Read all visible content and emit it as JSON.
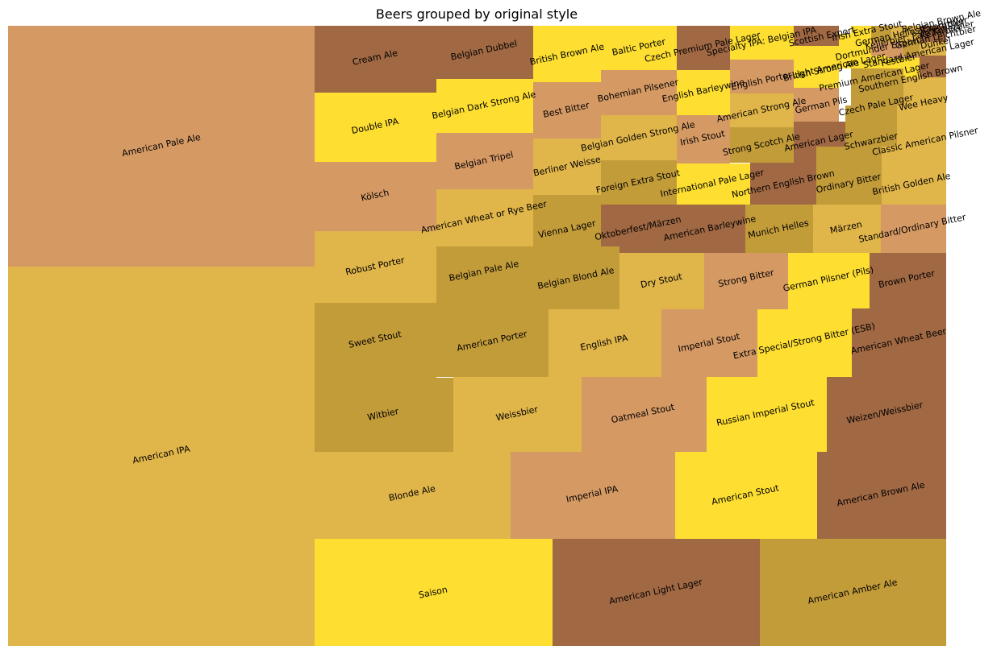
{
  "chart_data": {
    "type": "treemap",
    "title": "Beers grouped by original style",
    "colors": [
      "#d59964",
      "#e0b54a",
      "#a06843",
      "#fdde31",
      "#c39c3a"
    ],
    "tiles": [
      {
        "label": "American Pale Ale",
        "color": "#d59964"
      },
      {
        "label": "American IPA",
        "color": "#e0b54a"
      },
      {
        "label": "Cream Ale",
        "color": "#a06843"
      },
      {
        "label": "Belgian Dubbel",
        "color": "#a06843"
      },
      {
        "label": "Double IPA",
        "color": "#fdde31"
      },
      {
        "label": "Belgian Dark Strong Ale",
        "color": "#fdde31"
      },
      {
        "label": "Belgian Tripel",
        "color": "#d59964"
      },
      {
        "label": "Kölsch",
        "color": "#d59964"
      },
      {
        "label": "American Wheat or Rye Beer",
        "color": "#e0b54a"
      },
      {
        "label": "Robust Porter",
        "color": "#e0b54a"
      },
      {
        "label": "Belgian Pale Ale",
        "color": "#c39c3a"
      },
      {
        "label": "Sweet Stout",
        "color": "#c39c3a"
      },
      {
        "label": "American Porter",
        "color": "#c39c3a"
      },
      {
        "label": "Witbier",
        "color": "#c39c3a"
      },
      {
        "label": "Weissbier",
        "color": "#e0b54a"
      },
      {
        "label": "Blonde Ale",
        "color": "#e0b54a"
      },
      {
        "label": "Saison",
        "color": "#fdde31"
      },
      {
        "label": "American Light Lager",
        "color": "#a06843"
      },
      {
        "label": "American Amber Ale",
        "color": "#c39c3a"
      },
      {
        "label": "British Brown Ale",
        "color": "#fdde31"
      },
      {
        "label": "Baltic Porter",
        "color": "#fdde31"
      },
      {
        "label": "Czech Premium Pale Lager",
        "color": "#a06843"
      },
      {
        "label": "Specialty IPA: Belgian IPA",
        "color": "#fdde31"
      },
      {
        "label": "Scottish Export",
        "color": "#a06843"
      },
      {
        "label": "Irish Extra Stout",
        "color": "#fdde31"
      },
      {
        "label": "German Helles Exportbier",
        "color": "#c39c3a"
      },
      {
        "label": "Kellerbier: Pale Kellerbier",
        "color": "#e0b54a"
      },
      {
        "label": "Dortmunder Export",
        "color": "#fdde31"
      },
      {
        "label": "Light American Lager",
        "color": "#fdde31"
      },
      {
        "label": "Bohemian Pilsener",
        "color": "#d59964"
      },
      {
        "label": "Best Bitter",
        "color": "#d59964"
      },
      {
        "label": "English Barleywine",
        "color": "#fdde31"
      },
      {
        "label": "English Porter",
        "color": "#d59964"
      },
      {
        "label": "British Strong Ale",
        "color": "#fdde31"
      },
      {
        "label": "Festbier",
        "color": "#fdde31"
      },
      {
        "label": "Standard American Lager",
        "color": "#d59964"
      },
      {
        "label": "Belgian Golden Strong Ale",
        "color": "#e0b54a"
      },
      {
        "label": "Berliner Weisse",
        "color": "#e0b54a"
      },
      {
        "label": "Premium American Lager",
        "color": "#fdde31"
      },
      {
        "label": "Southern English Brown",
        "color": "#fdde31"
      },
      {
        "label": "American Strong Ale",
        "color": "#e0b54a"
      },
      {
        "label": "German Pils",
        "color": "#d59964"
      },
      {
        "label": "Czech Pale Lager",
        "color": "#c39c3a"
      },
      {
        "label": "Wee Heavy",
        "color": "#e0b54a"
      },
      {
        "label": "Irish Stout",
        "color": "#d59964"
      },
      {
        "label": "Strong Scotch Ale",
        "color": "#c39c3a"
      },
      {
        "label": "American Lager",
        "color": "#a06843"
      },
      {
        "label": "Schwarzbier",
        "color": "#c39c3a"
      },
      {
        "label": "Classic American Pilsner",
        "color": "#e0b54a"
      },
      {
        "label": "Foreign Extra Stout",
        "color": "#c39c3a"
      },
      {
        "label": "International Pale Lager",
        "color": "#fdde31"
      },
      {
        "label": "Northern English Brown",
        "color": "#a06843"
      },
      {
        "label": "Ordinary Bitter",
        "color": "#c39c3a"
      },
      {
        "label": "British Golden Ale",
        "color": "#e0b54a"
      },
      {
        "label": "Vienna Lager",
        "color": "#c39c3a"
      },
      {
        "label": "Oktoberfest/Märzen",
        "color": "#a06843"
      },
      {
        "label": "American Barleywine",
        "color": "#a06843"
      },
      {
        "label": "Munich Helles",
        "color": "#c39c3a"
      },
      {
        "label": "Märzen",
        "color": "#e0b54a"
      },
      {
        "label": "Standard/Ordinary Bitter",
        "color": "#d59964"
      },
      {
        "label": "Belgian Blond Ale",
        "color": "#c39c3a"
      },
      {
        "label": "Dry Stout",
        "color": "#e0b54a"
      },
      {
        "label": "Strong Bitter",
        "color": "#d59964"
      },
      {
        "label": "German Pilsner (Pils)",
        "color": "#fdde31"
      },
      {
        "label": "Brown Porter",
        "color": "#a06843"
      },
      {
        "label": "English IPA",
        "color": "#e0b54a"
      },
      {
        "label": "Imperial Stout",
        "color": "#d59964"
      },
      {
        "label": "Extra Special/Strong Bitter (ESB)",
        "color": "#fdde31"
      },
      {
        "label": "American Wheat Beer",
        "color": "#a06843"
      },
      {
        "label": "Oatmeal Stout",
        "color": "#d59964"
      },
      {
        "label": "Russian Imperial Stout",
        "color": "#fdde31"
      },
      {
        "label": "Weizen/Weissbier",
        "color": "#a06843"
      },
      {
        "label": "Imperial IPA",
        "color": "#d59964"
      },
      {
        "label": "American Stout",
        "color": "#fdde31"
      },
      {
        "label": "American Brown Ale",
        "color": "#a06843"
      },
      {
        "label": "Belgian Brown Ale",
        "color": "#a06843"
      },
      {
        "label": "Rauchbier",
        "color": "#c39c3a"
      },
      {
        "label": "Kellerbier",
        "color": "#e0b54a"
      },
      {
        "label": "Dunkel",
        "color": "#d59964"
      },
      {
        "label": "German Leichtbier",
        "color": "#a06843"
      }
    ]
  }
}
